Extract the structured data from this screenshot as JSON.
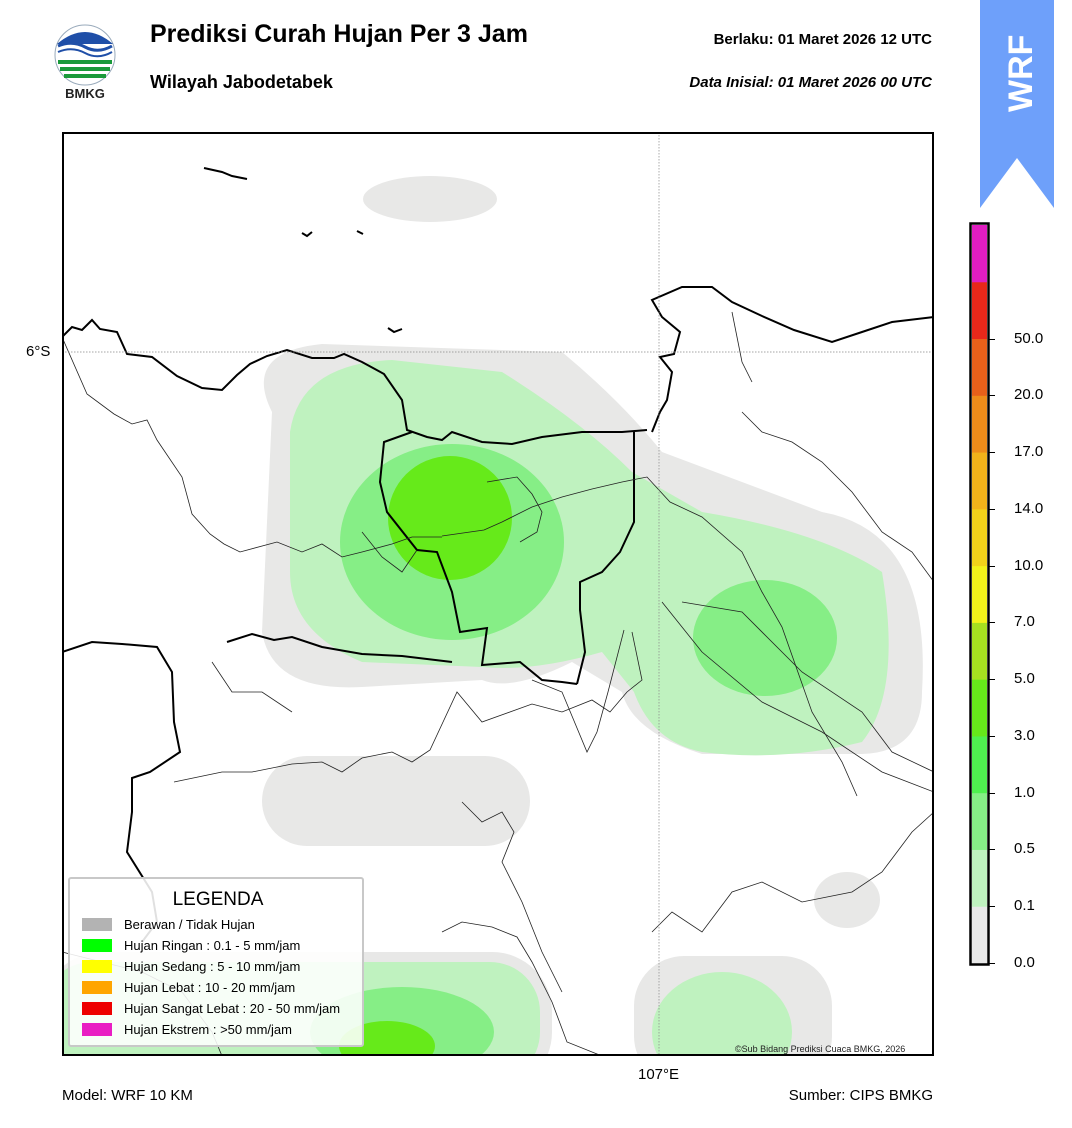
{
  "header": {
    "title": "Prediksi Curah Hujan Per 3 Jam",
    "subtitle": "Wilayah Jabodetabek",
    "valid_label": "Berlaku:  01 Maret 2026 12 UTC",
    "init_label": "Data Inisial:  01 Maret 2026 00 UTC"
  },
  "logo": {
    "text": "BMKG"
  },
  "badge": {
    "text": "WRF",
    "color": "#6ea0fa"
  },
  "map": {
    "lat_label": "6°S",
    "lon_label": "107°E",
    "copyright": "©Sub Bidang Prediksi Cuaca BMKG, 2026"
  },
  "legend": {
    "title": "LEGENDA",
    "items": [
      {
        "label": "Berawan / Tidak Hujan",
        "color": "#b3b3b3"
      },
      {
        "label": "Hujan Ringan : 0.1 - 5 mm/jam",
        "color": "#00ff00"
      },
      {
        "label": "Hujan Sedang : 5 - 10 mm/jam",
        "color": "#ffff00"
      },
      {
        "label": "Hujan Lebat : 10 - 20 mm/jam",
        "color": "#ffa500"
      },
      {
        "label": "Hujan Sangat Lebat : 20 - 50 mm/jam",
        "color": "#ee0000"
      },
      {
        "label": "Hujan Ekstrem : >50 mm/jam",
        "color": "#e91ec3"
      }
    ]
  },
  "colorbar": {
    "ticks": [
      "0.0",
      "0.1",
      "0.5",
      "1.0",
      "3.0",
      "5.0",
      "7.0",
      "10.0",
      "14.0",
      "17.0",
      "20.0",
      "50.0"
    ],
    "colors": [
      "#e8e8e8",
      "#bff2bf",
      "#86ee86",
      "#4ff04f",
      "#66e81a",
      "#a6e020",
      "#f2f21a",
      "#f2d21a",
      "#f2b21a",
      "#ee8c1a",
      "#e8601a",
      "#e8281a",
      "#e01ec0"
    ]
  },
  "footer": {
    "model": "Model: WRF 10 KM",
    "source": "Sumber: CIPS BMKG"
  }
}
